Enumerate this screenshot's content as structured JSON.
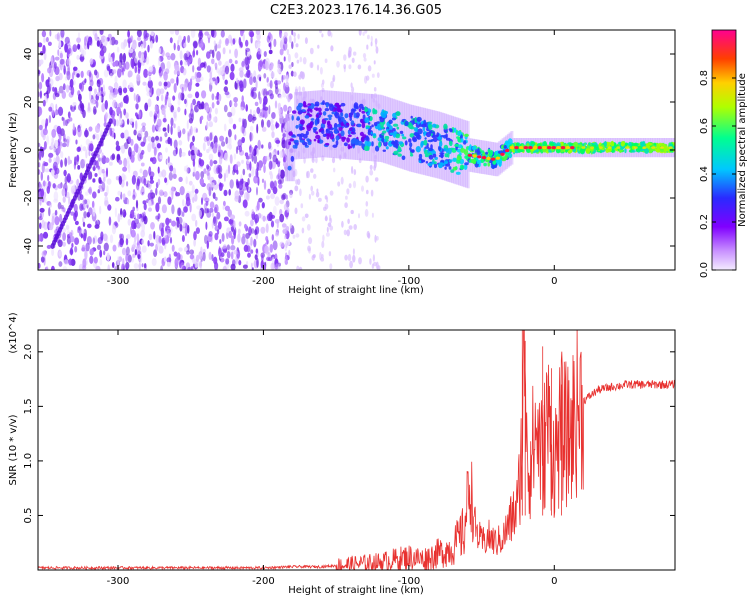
{
  "title": "C2E3.2023.176.14.36.G05",
  "colors": {
    "trace": "#e8312f",
    "noise": "#7b2ff0",
    "background": "#ffffff",
    "colorbar": [
      "#f2e6ff",
      "#c080ff",
      "#8000ff",
      "#2020ff",
      "#00c8ff",
      "#00ff80",
      "#ffff00",
      "#ff6000",
      "#ff0040",
      "#ff0090"
    ]
  },
  "chart_data": [
    {
      "type": "heatmap",
      "xlabel": "Height of straight line (km)",
      "ylabel": "Frequency (Hz)",
      "xlim": [
        -355,
        83
      ],
      "ylim": [
        -50,
        50
      ],
      "xticks": [
        -300,
        -200,
        -100,
        0
      ],
      "yticks": [
        -40,
        -20,
        0,
        20,
        40
      ],
      "grid": false,
      "colorbar": {
        "label": "Normalized spectral amplitude",
        "range": [
          0,
          1
        ],
        "ticks": [
          0.0,
          0.2,
          0.4,
          0.6,
          0.8
        ],
        "tick_labels": [
          "0.0",
          "0.2",
          "0.4",
          "0.6",
          "0.8"
        ]
      },
      "ridge": {
        "x": [
          -180,
          -160,
          -140,
          -120,
          -100,
          -80,
          -60,
          -50,
          -40,
          -30,
          -20,
          -10,
          0,
          20,
          40,
          60,
          83
        ],
        "y": [
          10,
          11,
          10,
          9,
          5,
          2,
          -2,
          -3,
          -4,
          1,
          1,
          1,
          1,
          1,
          1,
          1,
          1
        ]
      }
    },
    {
      "type": "line",
      "xlabel": "Height of straight line (km)",
      "ylabel": "SNR (10 * v/v)",
      "y_multiplier": "(x10^4)",
      "xlim": [
        -355,
        83
      ],
      "ylim": [
        0,
        2.2
      ],
      "xticks": [
        -300,
        -200,
        -100,
        0
      ],
      "yticks": [
        0.5,
        1.0,
        1.5,
        2.0
      ],
      "ytick_labels": [
        "0.5",
        "1.0",
        "1.5",
        "2.0"
      ],
      "grid": false,
      "series": [
        {
          "x": [
            -355,
            -300,
            -250,
            -200,
            -180,
            -160,
            -140,
            -120,
            -100,
            -90,
            -80,
            -70,
            -62,
            -58,
            -55,
            -50,
            -45,
            -40,
            -35,
            -30,
            -25,
            -22,
            -20,
            -18,
            -15,
            -12,
            -8,
            -5,
            0,
            5,
            10,
            15,
            20,
            25,
            30,
            40,
            50,
            60,
            70,
            83
          ],
          "y": [
            0.02,
            0.02,
            0.02,
            0.02,
            0.03,
            0.03,
            0.05,
            0.07,
            0.12,
            0.1,
            0.15,
            0.2,
            0.35,
            0.85,
            0.4,
            0.25,
            0.3,
            0.25,
            0.3,
            0.45,
            0.6,
            1.2,
            2.2,
            0.9,
            1.1,
            1.3,
            1.0,
            1.4,
            1.0,
            1.3,
            1.2,
            1.45,
            1.55,
            1.6,
            1.65,
            1.68,
            1.7,
            1.7,
            1.7,
            1.7
          ]
        }
      ]
    }
  ]
}
